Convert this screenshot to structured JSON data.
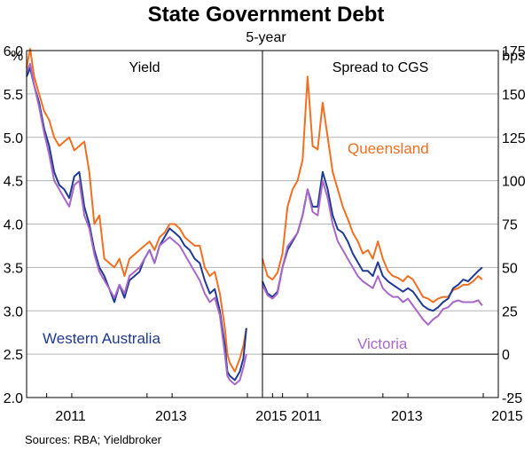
{
  "chart_data": {
    "type": "line",
    "title": "State Government Debt",
    "subtitle": "5-year",
    "source": "Sources:   RBA; Yieldbroker",
    "colors": {
      "queensland": "#f26f21",
      "western_australia": "#1f3a93",
      "victoria": "#a868c8",
      "grid": "#b3b3b3",
      "zero_line": "#000000"
    },
    "panels": [
      {
        "title": "Yield",
        "unit": "%",
        "ylim": [
          2.0,
          6.0
        ],
        "yticks": [
          "2.0",
          "2.5",
          "3.0",
          "3.5",
          "4.0",
          "4.5",
          "5.0",
          "5.5",
          "6.0"
        ],
        "xlim": [
          2010.6,
          2015.3
        ],
        "xticks": [
          "2011",
          "2013",
          "2015"
        ],
        "series_labels": [
          {
            "text": "Western Australia",
            "series": "western_australia"
          }
        ],
        "series": [
          {
            "id": "queensland",
            "name": "Queensland",
            "x": [
              2010.6,
              2010.67,
              2010.75,
              2010.85,
              2010.95,
              2011.05,
              2011.15,
              2011.25,
              2011.35,
              2011.45,
              2011.55,
              2011.65,
              2011.75,
              2011.85,
              2011.95,
              2012.05,
              2012.15,
              2012.25,
              2012.35,
              2012.45,
              2012.55,
              2012.65,
              2012.75,
              2012.85,
              2012.95,
              2013.05,
              2013.15,
              2013.25,
              2013.35,
              2013.45,
              2013.55,
              2013.65,
              2013.75,
              2013.85,
              2013.95,
              2014.05,
              2014.15,
              2014.25,
              2014.35,
              2014.45,
              2014.55,
              2014.6,
              2014.65,
              2014.75,
              2014.85,
              2014.92,
              2014.98
            ],
            "y": [
              5.8,
              6.02,
              5.7,
              5.5,
              5.3,
              5.2,
              5.0,
              4.9,
              4.95,
              5.0,
              4.85,
              4.9,
              4.95,
              4.6,
              4.0,
              4.1,
              3.6,
              3.55,
              3.5,
              3.6,
              3.4,
              3.6,
              3.65,
              3.7,
              3.75,
              3.8,
              3.7,
              3.85,
              3.9,
              4.0,
              4.0,
              3.95,
              3.85,
              3.8,
              3.75,
              3.75,
              3.5,
              3.4,
              3.45,
              3.2,
              2.8,
              2.5,
              2.4,
              2.3,
              2.45,
              2.6,
              2.8
            ]
          },
          {
            "id": "western_australia",
            "name": "Western Australia",
            "x": [
              2010.6,
              2010.67,
              2010.75,
              2010.85,
              2010.95,
              2011.05,
              2011.15,
              2011.25,
              2011.35,
              2011.45,
              2011.55,
              2011.65,
              2011.75,
              2011.85,
              2011.95,
              2012.05,
              2012.15,
              2012.25,
              2012.35,
              2012.45,
              2012.55,
              2012.65,
              2012.75,
              2012.85,
              2012.95,
              2013.05,
              2013.15,
              2013.25,
              2013.35,
              2013.45,
              2013.55,
              2013.65,
              2013.75,
              2013.85,
              2013.95,
              2014.05,
              2014.15,
              2014.25,
              2014.35,
              2014.45,
              2014.55,
              2014.6,
              2014.65,
              2014.75,
              2014.85,
              2014.92,
              2014.98
            ],
            "y": [
              5.7,
              5.8,
              5.6,
              5.4,
              5.1,
              4.9,
              4.6,
              4.45,
              4.4,
              4.3,
              4.55,
              4.6,
              4.2,
              4.0,
              3.7,
              3.5,
              3.4,
              3.25,
              3.1,
              3.3,
              3.15,
              3.35,
              3.4,
              3.45,
              3.6,
              3.7,
              3.55,
              3.75,
              3.85,
              3.95,
              3.9,
              3.85,
              3.75,
              3.7,
              3.6,
              3.55,
              3.35,
              3.2,
              3.25,
              3.0,
              2.6,
              2.3,
              2.25,
              2.2,
              2.3,
              2.45,
              2.8
            ]
          },
          {
            "id": "victoria",
            "name": "Victoria",
            "x": [
              2010.6,
              2010.67,
              2010.75,
              2010.85,
              2010.95,
              2011.05,
              2011.15,
              2011.25,
              2011.35,
              2011.45,
              2011.55,
              2011.65,
              2011.75,
              2011.85,
              2011.95,
              2012.05,
              2012.15,
              2012.25,
              2012.35,
              2012.45,
              2012.55,
              2012.65,
              2012.75,
              2012.85,
              2012.95,
              2013.05,
              2013.15,
              2013.25,
              2013.35,
              2013.45,
              2013.55,
              2013.65,
              2013.75,
              2013.85,
              2013.95,
              2014.05,
              2014.15,
              2014.25,
              2014.35,
              2014.45,
              2014.55,
              2014.6,
              2014.65,
              2014.75,
              2014.85,
              2014.92,
              2014.98
            ],
            "y": [
              5.75,
              5.85,
              5.6,
              5.35,
              5.05,
              4.8,
              4.5,
              4.4,
              4.3,
              4.2,
              4.45,
              4.5,
              4.1,
              3.95,
              3.65,
              3.45,
              3.35,
              3.25,
              3.15,
              3.3,
              3.2,
              3.4,
              3.45,
              3.5,
              3.6,
              3.7,
              3.55,
              3.75,
              3.8,
              3.85,
              3.8,
              3.75,
              3.65,
              3.55,
              3.45,
              3.35,
              3.2,
              3.1,
              3.15,
              2.95,
              2.5,
              2.25,
              2.2,
              2.15,
              2.2,
              2.35,
              2.5
            ]
          }
        ]
      },
      {
        "title": "Spread to CGS",
        "unit": "bps",
        "ylim": [
          -25,
          175
        ],
        "yticks": [
          "-25",
          "0",
          "25",
          "50",
          "75",
          "100",
          "125",
          "150",
          "175"
        ],
        "zero_line": 0,
        "xlim": [
          2010.6,
          2015.3
        ],
        "xticks": [
          "2011",
          "2013",
          "2015"
        ],
        "series_labels": [
          {
            "text": "Queensland",
            "series": "queensland"
          },
          {
            "text": "Victoria",
            "series": "victoria"
          }
        ],
        "series": [
          {
            "id": "queensland",
            "name": "Queensland",
            "x": [
              2010.6,
              2010.7,
              2010.8,
              2010.9,
              2011.0,
              2011.1,
              2011.2,
              2011.3,
              2011.4,
              2011.5,
              2011.6,
              2011.7,
              2011.8,
              2011.9,
              2012.0,
              2012.1,
              2012.2,
              2012.3,
              2012.4,
              2012.5,
              2012.6,
              2012.7,
              2012.8,
              2012.9,
              2013.0,
              2013.1,
              2013.2,
              2013.3,
              2013.4,
              2013.5,
              2013.6,
              2013.7,
              2013.8,
              2013.9,
              2014.0,
              2014.1,
              2014.2,
              2014.3,
              2014.4,
              2014.5,
              2014.6,
              2014.7,
              2014.8,
              2014.9,
              2014.98
            ],
            "y": [
              55,
              45,
              43,
              47,
              58,
              85,
              95,
              100,
              112,
              160,
              120,
              118,
              145,
              125,
              105,
              95,
              85,
              78,
              70,
              65,
              58,
              60,
              55,
              65,
              55,
              48,
              45,
              44,
              42,
              45,
              43,
              38,
              33,
              32,
              30,
              32,
              33,
              33,
              37,
              38,
              40,
              40,
              42,
              45,
              43
            ]
          },
          {
            "id": "western_australia",
            "name": "Western Australia",
            "x": [
              2010.6,
              2010.7,
              2010.8,
              2010.9,
              2011.0,
              2011.1,
              2011.2,
              2011.3,
              2011.4,
              2011.5,
              2011.6,
              2011.7,
              2011.8,
              2011.9,
              2012.0,
              2012.1,
              2012.2,
              2012.3,
              2012.4,
              2012.5,
              2012.6,
              2012.7,
              2012.8,
              2012.9,
              2013.0,
              2013.1,
              2013.2,
              2013.3,
              2013.4,
              2013.5,
              2013.6,
              2013.7,
              2013.8,
              2013.9,
              2014.0,
              2014.1,
              2014.2,
              2014.3,
              2014.4,
              2014.5,
              2014.6,
              2014.7,
              2014.8,
              2014.9,
              2014.98
            ],
            "y": [
              42,
              35,
              33,
              36,
              50,
              60,
              65,
              70,
              80,
              95,
              85,
              85,
              105,
              95,
              80,
              72,
              70,
              65,
              58,
              53,
              48,
              48,
              45,
              53,
              45,
              42,
              40,
              38,
              36,
              38,
              36,
              32,
              28,
              26,
              25,
              27,
              30,
              32,
              38,
              40,
              43,
              42,
              45,
              48,
              50
            ]
          },
          {
            "id": "victoria",
            "name": "Victoria",
            "x": [
              2010.6,
              2010.7,
              2010.8,
              2010.9,
              2011.0,
              2011.1,
              2011.2,
              2011.3,
              2011.4,
              2011.5,
              2011.6,
              2011.7,
              2011.8,
              2011.9,
              2012.0,
              2012.1,
              2012.2,
              2012.3,
              2012.4,
              2012.5,
              2012.6,
              2012.7,
              2012.8,
              2012.9,
              2013.0,
              2013.1,
              2013.2,
              2013.3,
              2013.4,
              2013.5,
              2013.6,
              2013.7,
              2013.8,
              2013.9,
              2014.0,
              2014.1,
              2014.2,
              2014.3,
              2014.4,
              2014.5,
              2014.6,
              2014.7,
              2014.8,
              2014.9,
              2014.98
            ],
            "y": [
              40,
              34,
              32,
              35,
              50,
              62,
              66,
              70,
              80,
              95,
              82,
              80,
              100,
              90,
              75,
              65,
              60,
              55,
              50,
              45,
              42,
              40,
              38,
              45,
              38,
              35,
              33,
              33,
              30,
              32,
              28,
              24,
              20,
              17,
              20,
              22,
              26,
              27,
              30,
              31,
              30,
              30,
              30,
              31,
              28
            ]
          }
        ]
      }
    ]
  }
}
